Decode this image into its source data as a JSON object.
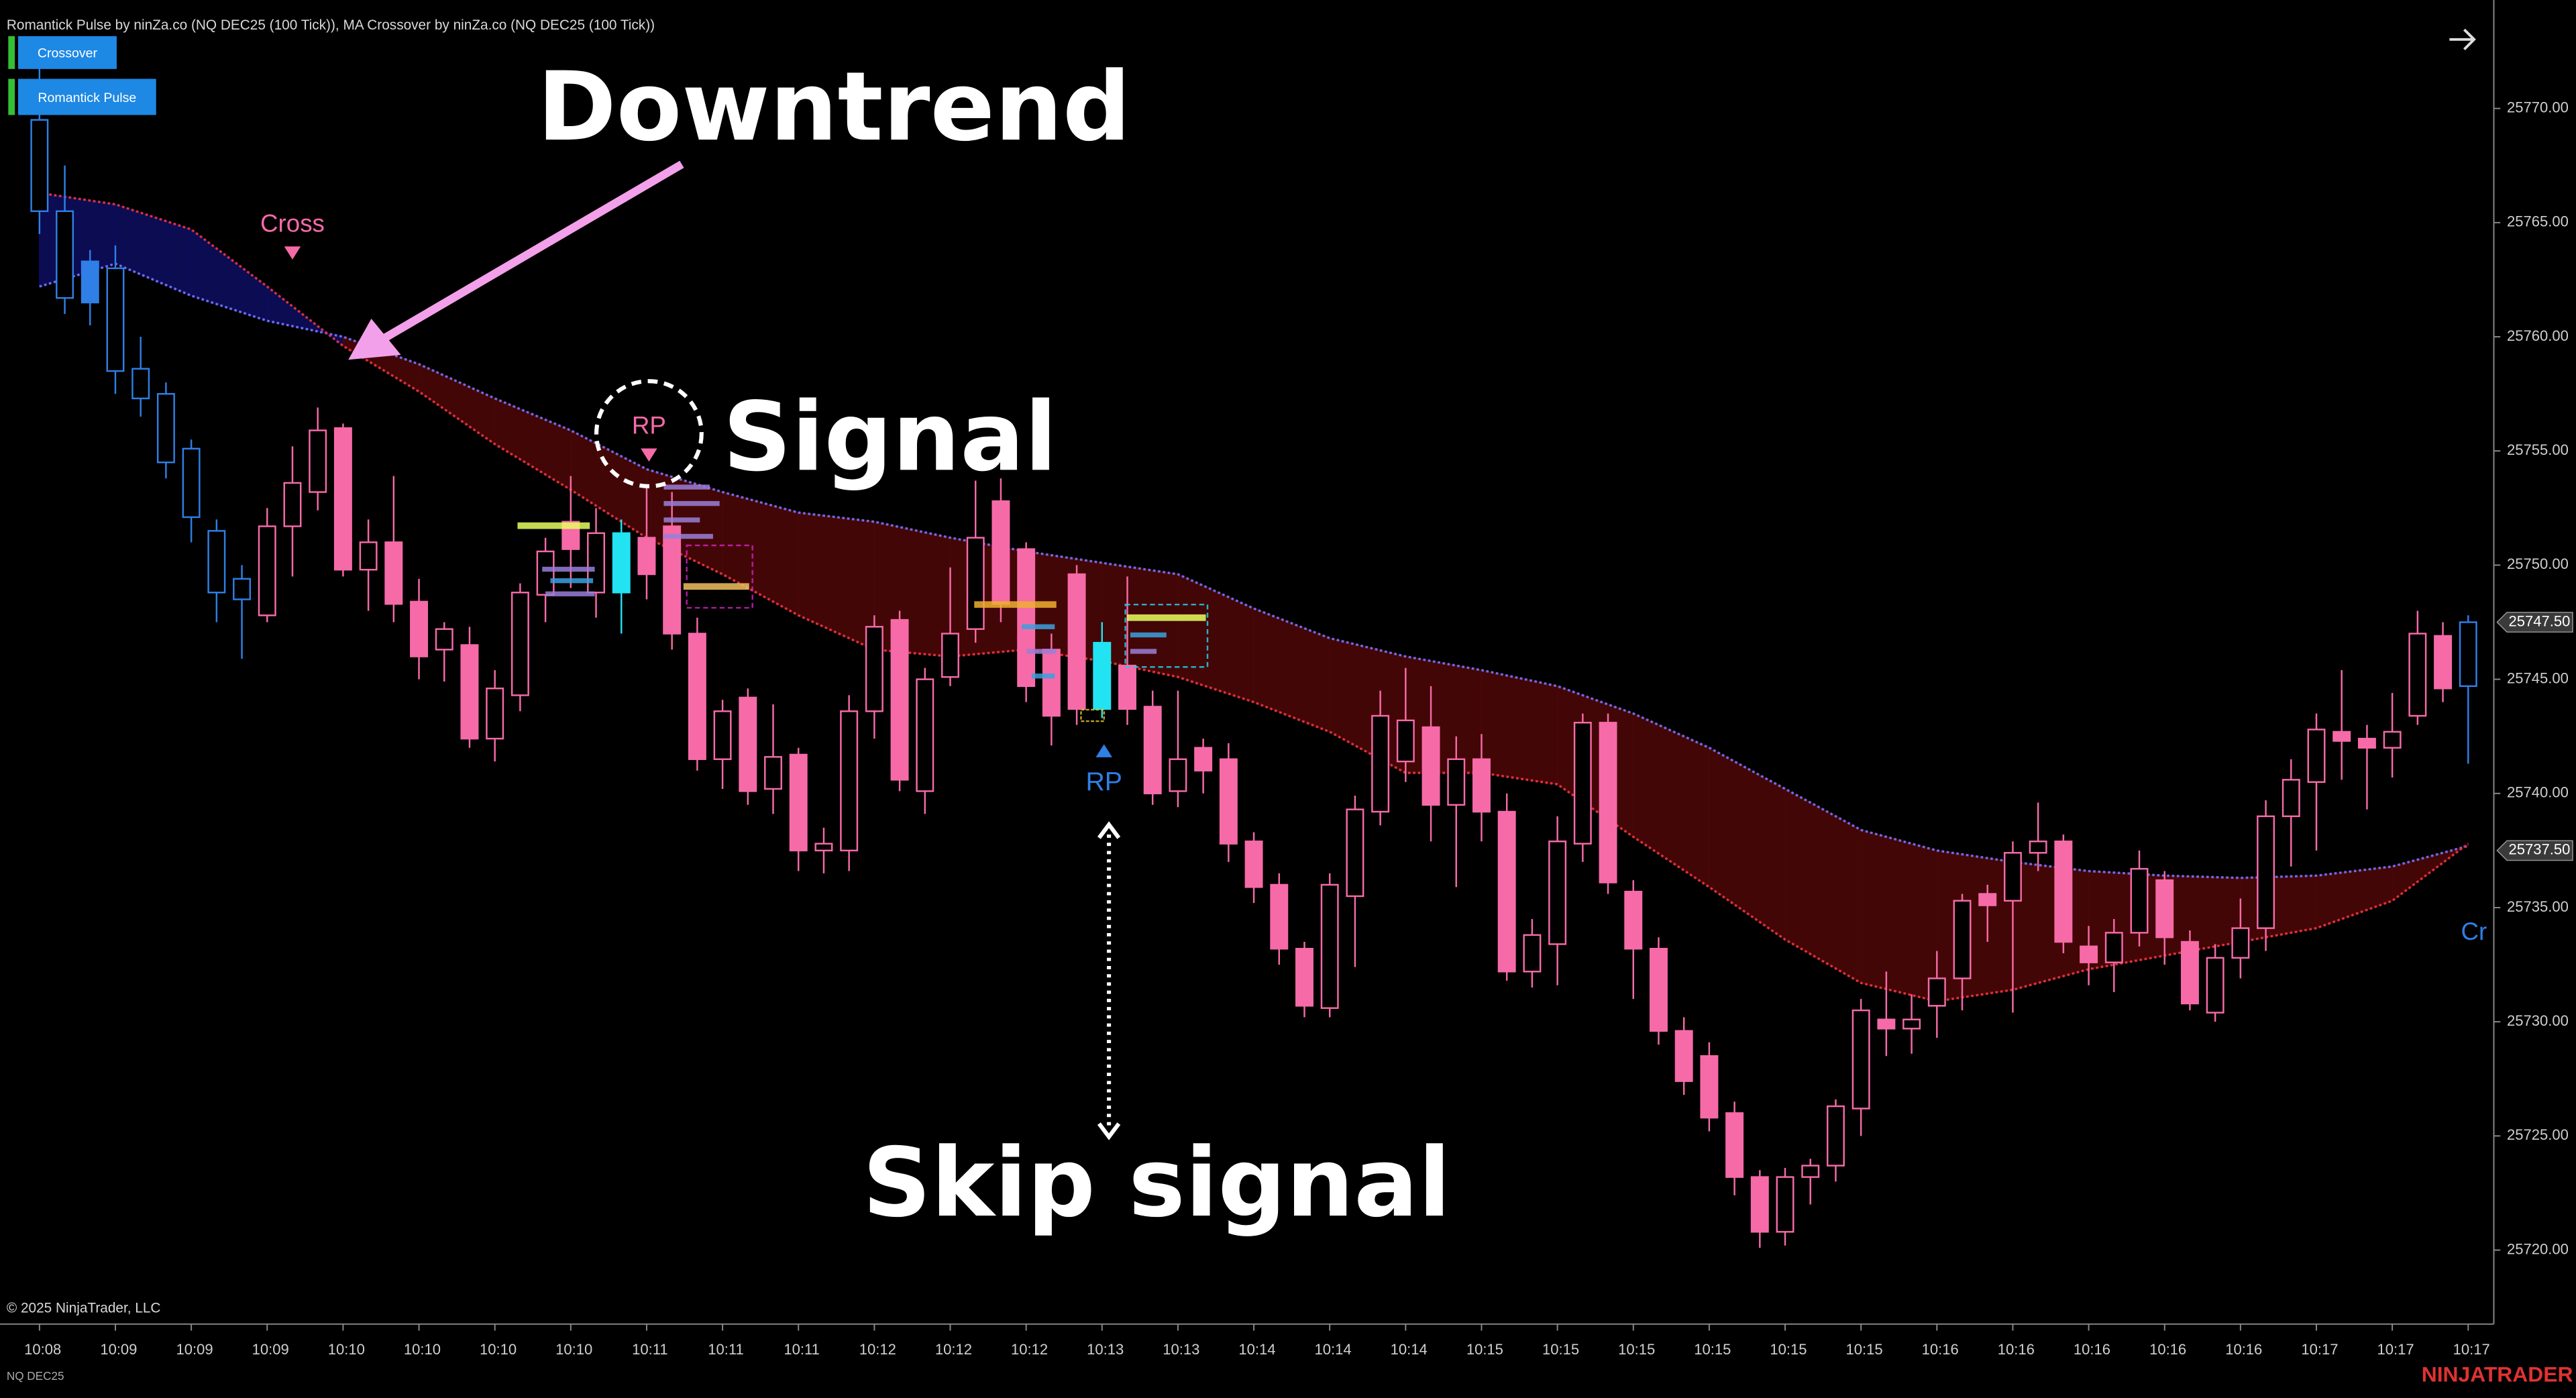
{
  "chart_data": {
    "type": "candlestick",
    "indicator_title": "Romantick Pulse by ninZa.co (NQ DEC25 (100 Tick)), MA Crossover by ninZa.co (NQ DEC25 (100 Tick))",
    "buttons": [
      "Crossover",
      "Romantick Pulse"
    ],
    "annotations": {
      "downtrend": "Downtrend",
      "signal": "Signal",
      "skip": "Skip signal"
    },
    "signals": [
      {
        "label": "Cross"
      },
      {
        "label": "RP"
      },
      {
        "label": "RP"
      },
      {
        "label": "Cr"
      }
    ],
    "copyright": "© 2025 NinjaTrader, LLC",
    "instrument": "NQ DEC25",
    "logo": "NINJATRADER",
    "ylim": [
      25716.76,
      25774.75
    ],
    "yticks": [
      {
        "value": 25720,
        "label": "25720.00"
      },
      {
        "value": 25725,
        "label": "25725.00"
      },
      {
        "value": 25730,
        "label": "25730.00"
      },
      {
        "value": 25735,
        "label": "25735.00"
      },
      {
        "value": 25740,
        "label": "25740.00"
      },
      {
        "value": 25745,
        "label": "25745.00"
      },
      {
        "value": 25750,
        "label": "25750.00"
      },
      {
        "value": 25755,
        "label": "25755.00"
      },
      {
        "value": 25760,
        "label": "25760.00"
      },
      {
        "value": 25765,
        "label": "25765.00"
      },
      {
        "value": 25770,
        "label": "25770.00"
      }
    ],
    "grid": false,
    "price_markers": [
      {
        "value": 25747.5,
        "label": "25747.50"
      },
      {
        "value": 25737.5,
        "label": "25737.50"
      }
    ],
    "categories": [
      "10:08",
      null,
      null,
      "10:09",
      null,
      null,
      "10:09",
      null,
      null,
      "10:09",
      null,
      null,
      "10:10",
      null,
      null,
      "10:10",
      null,
      null,
      "10:10",
      null,
      null,
      "10:10",
      null,
      null,
      "10:11",
      null,
      null,
      "10:11",
      null,
      null,
      "10:11",
      null,
      null,
      "10:12",
      null,
      null,
      "10:12",
      null,
      null,
      "10:12",
      null,
      null,
      "10:13",
      null,
      null,
      "10:13",
      null,
      null,
      "10:14",
      null,
      null,
      "10:14",
      null,
      null,
      "10:14",
      null,
      null,
      "10:15",
      null,
      null,
      "10:15",
      null,
      null,
      "10:15",
      null,
      null,
      "10:15",
      null,
      null,
      "10:15",
      null,
      null,
      "10:15",
      null,
      null,
      "10:16",
      null,
      null,
      "10:16",
      null,
      null,
      "10:16",
      null,
      null,
      "10:16",
      null,
      null,
      "10:16",
      null,
      null,
      "10:17",
      null,
      null,
      "10:17",
      null,
      null,
      "10:17"
    ],
    "candles": [
      [
        25765.5,
        25772.5,
        25764.5,
        25769.5
      ],
      [
        25761.7,
        25767.5,
        25761,
        25765.5
      ],
      [
        25763.3,
        25763.8,
        25760.5,
        25761.5
      ],
      [
        25758.5,
        25764,
        25757.5,
        25763
      ],
      [
        25757.3,
        25760,
        25756.5,
        25758.6
      ],
      [
        25754.5,
        25758,
        25753.8,
        25757.5
      ],
      [
        25752.1,
        25755.5,
        25751,
        25755.1
      ],
      [
        25748.8,
        25752,
        25747.5,
        25751.5
      ],
      [
        25748.5,
        25750,
        25745.9,
        25749.4
      ],
      [
        25747.8,
        25752.5,
        25747.5,
        25751.7
      ],
      [
        25751.7,
        25755.2,
        25749.5,
        25753.6
      ],
      [
        25753.2,
        25756.9,
        25752.4,
        25755.9
      ],
      [
        25756,
        25756.2,
        25749.5,
        25749.8
      ],
      [
        25749.8,
        25752,
        25748,
        25751
      ],
      [
        25751,
        25753.9,
        25747.5,
        25748.3
      ],
      [
        25748.4,
        25749.4,
        25745,
        25746
      ],
      [
        25746.3,
        25747.5,
        25744.9,
        25747.2
      ],
      [
        25746.5,
        25747.3,
        25742,
        25742.4
      ],
      [
        25742.4,
        25745.4,
        25741.4,
        25744.6
      ],
      [
        25744.3,
        25749.2,
        25743.6,
        25748.8
      ],
      [
        25748.7,
        25751.2,
        25747.5,
        25750.6
      ],
      [
        25751.9,
        25753.9,
        25749,
        25750.7
      ],
      [
        25748.8,
        25752.5,
        25747.7,
        25751.4
      ],
      [
        25751.4,
        25752,
        25747,
        25748.8
      ],
      [
        25751.2,
        25753.5,
        25748.5,
        25749.6
      ],
      [
        25751.7,
        25753.2,
        25746.3,
        25747
      ],
      [
        25747,
        25747.7,
        25741,
        25741.5
      ],
      [
        25741.5,
        25744.1,
        25740.2,
        25743.6
      ],
      [
        25744.2,
        25744.6,
        25739.5,
        25740.1
      ],
      [
        25740.2,
        25743.9,
        25739.1,
        25741.6
      ],
      [
        25741.7,
        25742,
        25736.6,
        25737.5
      ],
      [
        25737.5,
        25738.5,
        25736.5,
        25737.8
      ],
      [
        25737.5,
        25744.3,
        25736.6,
        25743.6
      ],
      [
        25743.6,
        25747.8,
        25742.4,
        25747.3
      ],
      [
        25747.6,
        25748,
        25740.1,
        25740.6
      ],
      [
        25740.1,
        25745.5,
        25739.1,
        25745
      ],
      [
        25745.1,
        25749.9,
        25744.7,
        25747
      ],
      [
        25747.2,
        25753.7,
        25746.6,
        25751.2
      ],
      [
        25752.8,
        25753.8,
        25747.5,
        25748.3
      ],
      [
        25750.7,
        25751,
        25744,
        25744.7
      ],
      [
        25746.3,
        25747,
        25742.1,
        25743.4
      ],
      [
        25749.6,
        25750,
        25743,
        25743.7
      ],
      [
        25746.6,
        25747.5,
        25743.3,
        25743.7
      ],
      [
        25745.6,
        25749.5,
        25743,
        25743.7
      ],
      [
        25743.8,
        25744.5,
        25739.5,
        25740
      ],
      [
        25740.1,
        25744.5,
        25739.4,
        25741.5
      ],
      [
        25742,
        25742.4,
        25740,
        25741
      ],
      [
        25741.5,
        25742.2,
        25737,
        25737.8
      ],
      [
        25737.9,
        25738.3,
        25735.2,
        25735.9
      ],
      [
        25736,
        25736.5,
        25732.5,
        25733.2
      ],
      [
        25733.2,
        25733.5,
        25730.2,
        25730.7
      ],
      [
        25730.6,
        25736.5,
        25730.2,
        25736
      ],
      [
        25735.5,
        25739.9,
        25732.4,
        25739.3
      ],
      [
        25739.2,
        25744.5,
        25738.6,
        25743.4
      ],
      [
        25741.4,
        25745.5,
        25740.5,
        25743.2
      ],
      [
        25742.9,
        25744.7,
        25737.9,
        25739.5
      ],
      [
        25739.5,
        25742.5,
        25735.9,
        25741.5
      ],
      [
        25741.5,
        25742.6,
        25737.9,
        25739.2
      ],
      [
        25739.2,
        25740,
        25731.8,
        25732.2
      ],
      [
        25732.2,
        25734.5,
        25731.5,
        25733.8
      ],
      [
        25733.4,
        25739,
        25731.6,
        25737.9
      ],
      [
        25737.8,
        25743.5,
        25737,
        25743.1
      ],
      [
        25743.1,
        25743.5,
        25735.6,
        25736.1
      ],
      [
        25735.7,
        25736.2,
        25731,
        25733.2
      ],
      [
        25733.2,
        25733.7,
        25729,
        25729.6
      ],
      [
        25729.6,
        25730.2,
        25726.8,
        25727.4
      ],
      [
        25728.5,
        25729.1,
        25725.2,
        25725.8
      ],
      [
        25726,
        25726.5,
        25722.4,
        25723.2
      ],
      [
        25723.2,
        25723.5,
        25720.1,
        25720.8
      ],
      [
        25720.8,
        25723.6,
        25720.2,
        25723.2
      ],
      [
        25723.2,
        25724,
        25722,
        25723.7
      ],
      [
        25723.7,
        25726.6,
        25723,
        25726.3
      ],
      [
        25726.2,
        25731,
        25725,
        25730.5
      ],
      [
        25730.1,
        25732.2,
        25728.5,
        25729.7
      ],
      [
        25729.7,
        25731.2,
        25728.6,
        25730.1
      ],
      [
        25730.7,
        25733.1,
        25729.3,
        25731.9
      ],
      [
        25731.9,
        25735.6,
        25730.5,
        25735.3
      ],
      [
        25735.6,
        25736,
        25733.5,
        25735.1
      ],
      [
        25735.3,
        25737.9,
        25730.4,
        25737.4
      ],
      [
        25737.4,
        25739.6,
        25736.6,
        25737.9
      ],
      [
        25737.9,
        25738.2,
        25733,
        25733.5
      ],
      [
        25733.3,
        25734.2,
        25731.6,
        25732.6
      ],
      [
        25732.6,
        25734.5,
        25731.3,
        25733.9
      ],
      [
        25733.9,
        25737.5,
        25733.3,
        25736.7
      ],
      [
        25736.2,
        25736.6,
        25732.5,
        25733.7
      ],
      [
        25733.5,
        25734,
        25730.5,
        25730.8
      ],
      [
        25730.4,
        25733.4,
        25730,
        25732.8
      ],
      [
        25732.8,
        25735.4,
        25731.9,
        25734.1
      ],
      [
        25734.1,
        25739.7,
        25733.1,
        25739
      ],
      [
        25739,
        25741.5,
        25736.8,
        25740.6
      ],
      [
        25740.5,
        25743.5,
        25737.5,
        25742.8
      ],
      [
        25742.7,
        25745.4,
        25740.6,
        25742.3
      ],
      [
        25742.4,
        25743,
        25739.3,
        25742
      ],
      [
        25742,
        25744.4,
        25740.7,
        25742.7
      ],
      [
        25743.4,
        25748,
        25743,
        25747
      ],
      [
        25746.9,
        25747.5,
        25744,
        25744.6
      ],
      [
        25744.7,
        25747.8,
        25741.3,
        25747.5
      ]
    ],
    "candle_colors": [
      "#2f7fe6",
      "#2f7fe6",
      "#2f7fe6",
      "#2f7fe6",
      "#2f7fe6",
      "#2f7fe6",
      "#2f7fe6",
      "#2f7fe6",
      "#2f7fe6",
      "#f66aa8",
      "#f66aa8",
      "#f66aa8",
      "#f66aa8",
      "#f66aa8",
      "#f66aa8",
      "#f66aa8",
      "#f66aa8",
      "#f66aa8",
      "#f66aa8",
      "#f66aa8",
      "#f66aa8",
      "#f66aa8",
      "#f66aa8",
      "#22e3f2",
      "#f66aa8",
      "#f66aa8",
      "#f66aa8",
      "#f66aa8",
      "#f66aa8",
      "#f66aa8",
      "#f66aa8",
      "#f66aa8",
      "#f66aa8",
      "#f66aa8",
      "#f66aa8",
      "#f66aa8",
      "#f66aa8",
      "#f66aa8",
      "#f66aa8",
      "#f66aa8",
      "#f66aa8",
      "#f66aa8",
      "#22e3f2",
      "#f66aa8",
      "#f66aa8",
      "#f66aa8",
      "#f66aa8",
      "#f66aa8",
      "#f66aa8",
      "#f66aa8",
      "#f66aa8",
      "#f66aa8",
      "#f66aa8",
      "#f66aa8",
      "#f66aa8",
      "#f66aa8",
      "#f66aa8",
      "#f66aa8",
      "#f66aa8",
      "#f66aa8",
      "#f66aa8",
      "#f66aa8",
      "#f66aa8",
      "#f66aa8",
      "#f66aa8",
      "#f66aa8",
      "#f66aa8",
      "#f66aa8",
      "#f66aa8",
      "#f66aa8",
      "#f66aa8",
      "#f66aa8",
      "#f66aa8",
      "#f66aa8",
      "#f66aa8",
      "#f66aa8",
      "#f66aa8",
      "#f66aa8",
      "#f66aa8",
      "#f66aa8",
      "#f66aa8",
      "#f66aa8",
      "#f66aa8",
      "#f66aa8",
      "#f66aa8",
      "#f66aa8",
      "#f66aa8",
      "#f66aa8",
      "#f66aa8",
      "#f66aa8",
      "#f66aa8",
      "#f66aa8",
      "#f66aa8",
      "#f66aa8",
      "#f66aa8",
      "#f66aa8",
      "#2f7fe6"
    ],
    "moving_averages": [
      {
        "color": "#6c6cf0",
        "x": [
          0,
          3,
          6,
          9,
          12,
          15,
          18,
          21,
          24,
          27,
          30,
          33,
          36,
          39,
          42,
          45,
          48,
          51,
          54,
          57,
          60,
          63,
          66,
          69,
          72,
          75,
          78,
          81,
          84,
          87,
          90,
          93,
          96
        ],
        "values": [
          25762.2,
          25763.2,
          25761.8,
          25760.7,
          25760.0,
          25758.8,
          25757.3,
          25755.9,
          25754.2,
          25753.2,
          25752.3,
          25751.9,
          25751.2,
          25750.6,
          25750.1,
          25749.6,
          25748.1,
          25746.8,
          25746.0,
          25745.4,
          25744.7,
          25743.5,
          25742.0,
          25740.2,
          25738.4,
          25737.5,
          25737.0,
          25736.6,
          25736.4,
          25736.3,
          25736.4,
          25736.8,
          25737.7
        ]
      },
      {
        "color": "#e0303a",
        "x": [
          0,
          3,
          6,
          9,
          12,
          15,
          18,
          21,
          24,
          27,
          30,
          33,
          36,
          39,
          42,
          45,
          48,
          51,
          54,
          57,
          60,
          63,
          66,
          69,
          72,
          75,
          78,
          81,
          84,
          87,
          90,
          93,
          96
        ],
        "values": [
          25766.3,
          25765.8,
          25764.7,
          25762.2,
          25759.6,
          25757.6,
          25755.3,
          25753.3,
          25751.2,
          25749.6,
          25747.8,
          25746.3,
          25746.0,
          25746.3,
          25745.8,
          25745.1,
          25744.0,
          25742.7,
          25740.9,
          25740.9,
          25740.4,
          25738.1,
          25735.9,
          25733.6,
          25731.7,
          25730.9,
          25731.4,
          25732.3,
          25732.9,
          25733.5,
          25734.1,
          25735.3,
          25737.8
        ]
      }
    ],
    "fill_up_color": "#0d0d5c",
    "fill_down_color": "#4a0707"
  }
}
